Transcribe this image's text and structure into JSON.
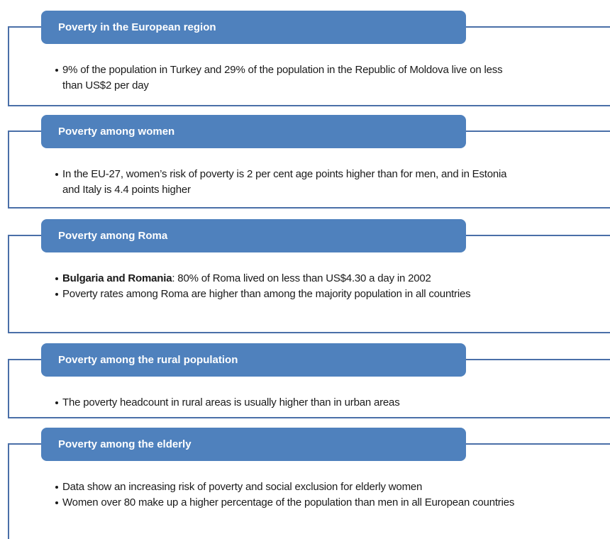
{
  "sections": [
    {
      "title": "Poverty in the European region",
      "items": [
        {
          "text": "9% of the population in Turkey and 29% of the population in the Republic of Moldova live on less than US$2 per day"
        }
      ]
    },
    {
      "title": "Poverty among women",
      "items": [
        {
          "text": "In the EU-27, women’s risk of poverty is 2 per cent age points higher than for men, and in Estonia and Italy is 4.4 points higher"
        }
      ]
    },
    {
      "title": "Poverty among Roma",
      "items": [
        {
          "bold": "Bulgaria and Romania",
          "text": ": 80% of Roma lived on less than US$4.30 a day in 2002"
        },
        {
          "text": "Poverty rates among Roma are higher than among the majority population in all countries"
        }
      ]
    },
    {
      "title": "Poverty among the rural population",
      "items": [
        {
          "text": "The poverty headcount in rural areas is usually higher than in urban areas"
        }
      ]
    },
    {
      "title": "Poverty among the elderly",
      "items": [
        {
          "text": "Data show an increasing risk of poverty and social exclusion for elderly women"
        },
        {
          "text": "Women over 80 make up a higher percentage of the population than men in all European countries"
        }
      ]
    }
  ]
}
